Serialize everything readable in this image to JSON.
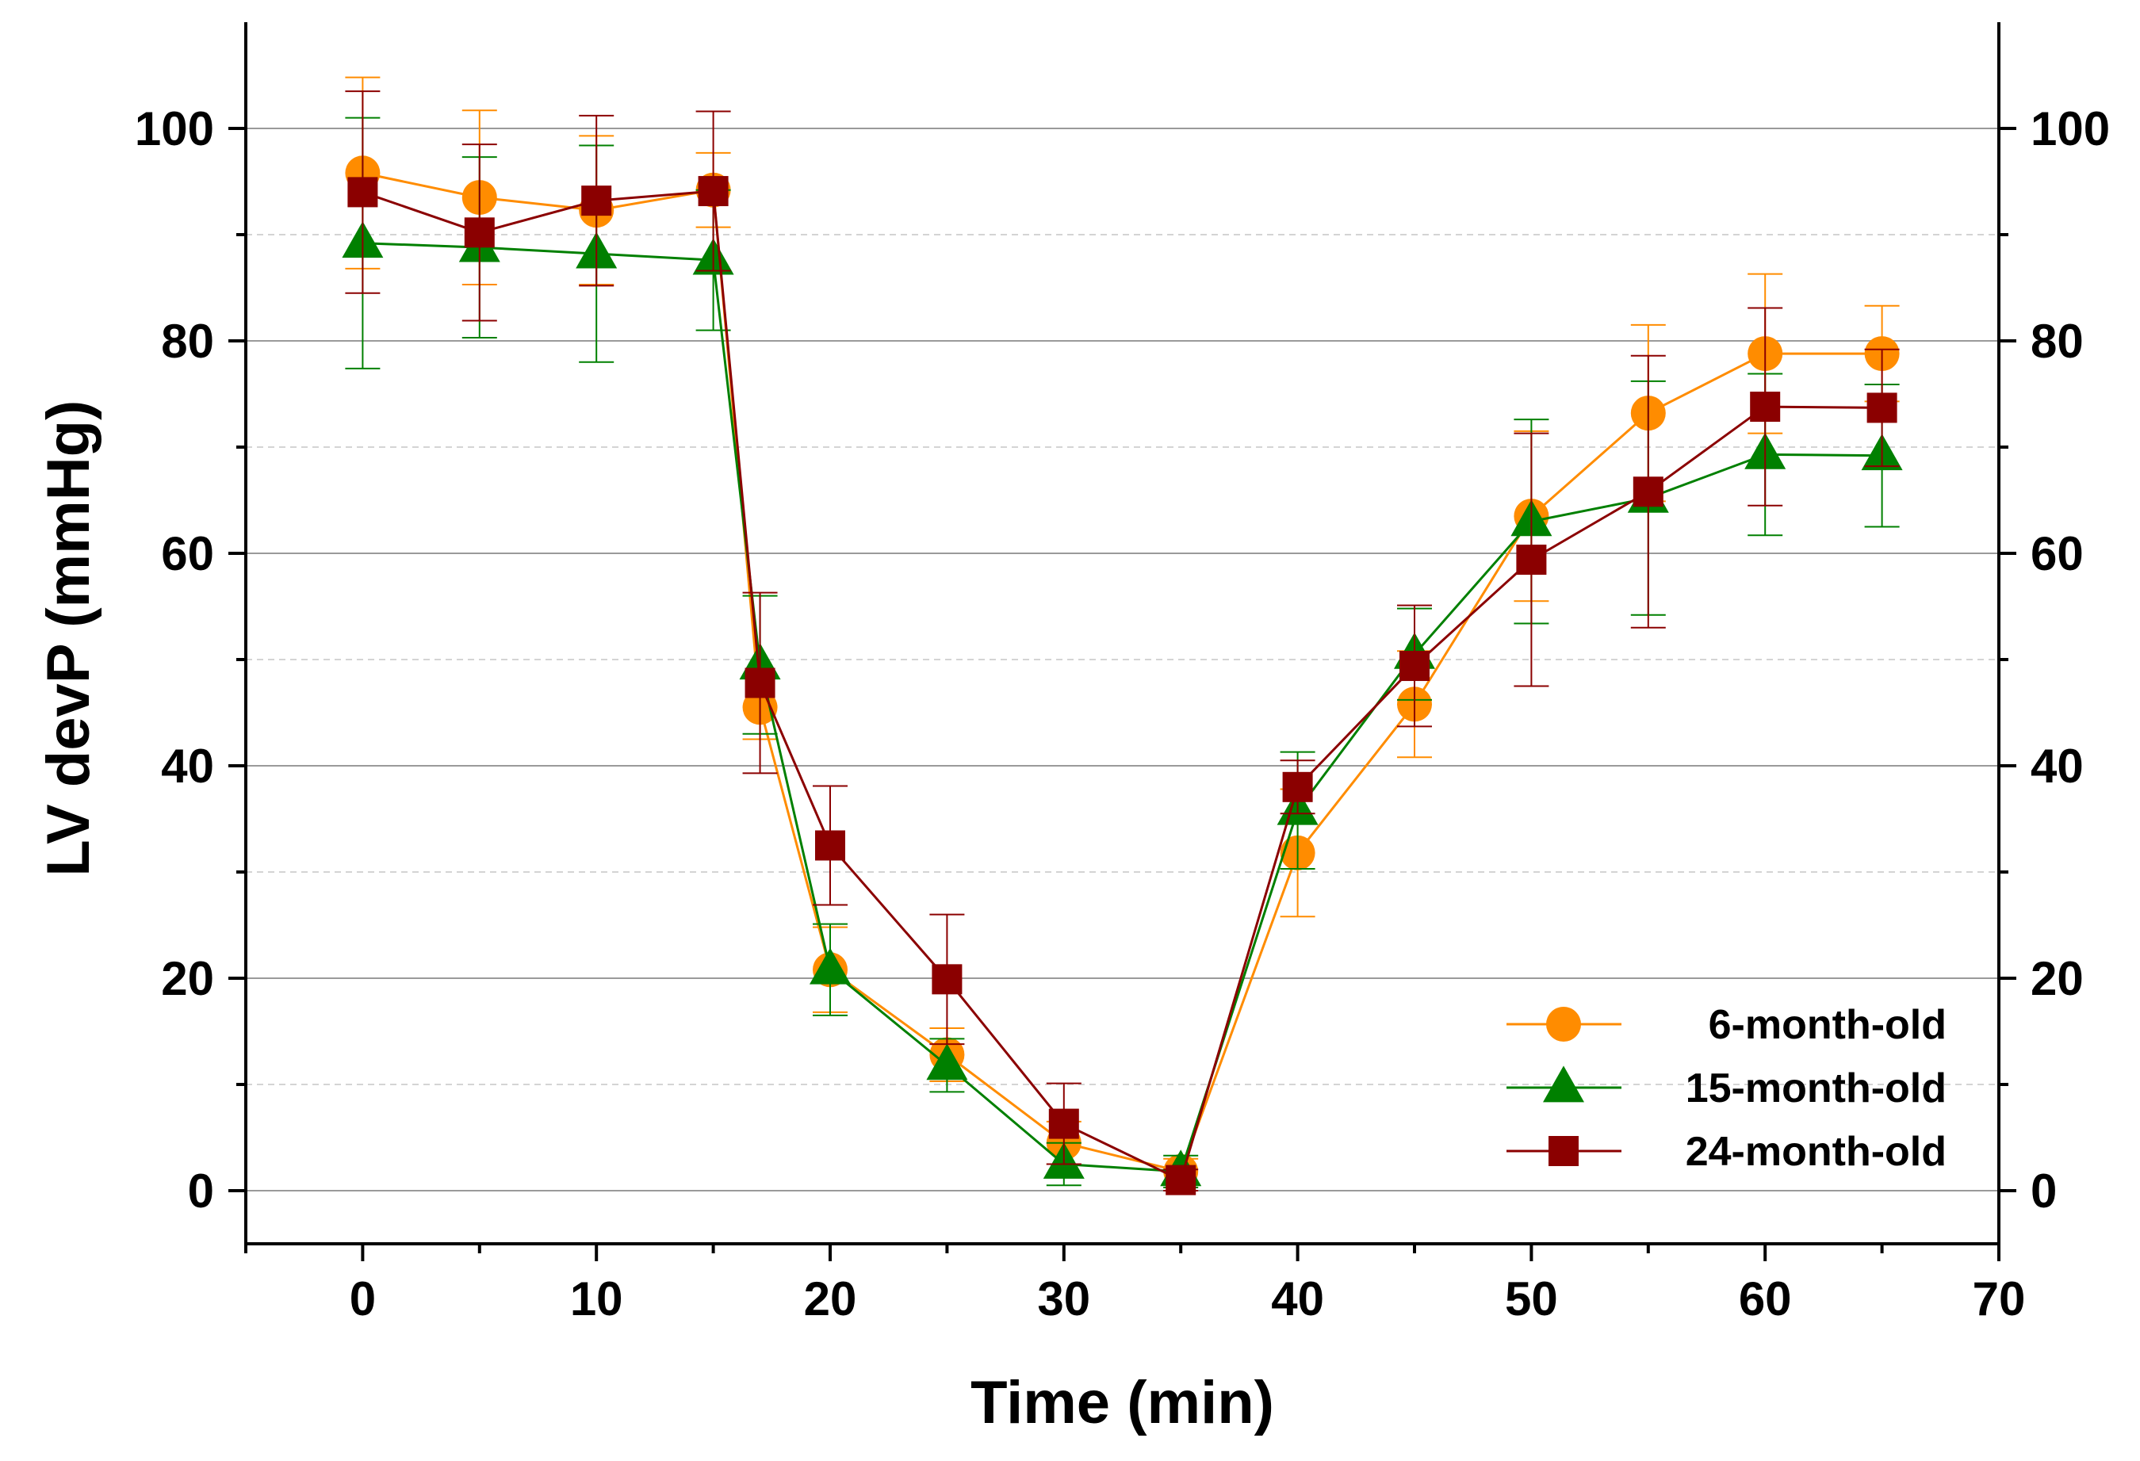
{
  "chart_data": {
    "type": "line",
    "title": "",
    "xlabel": "Time (min)",
    "ylabel": "LV devP (mmHg)",
    "xlim": [
      -5,
      70
    ],
    "ylim": [
      -5,
      110
    ],
    "xticks": [
      0,
      10,
      20,
      30,
      40,
      50,
      60,
      70
    ],
    "yticks": [
      0,
      20,
      40,
      60,
      80,
      100
    ],
    "xtick_labels": [
      "0",
      "10",
      "20",
      "30",
      "40",
      "50",
      "60",
      "70"
    ],
    "ytick_labels": [
      "0",
      "20",
      "40",
      "60",
      "80",
      "100"
    ],
    "right_ytick_labels": [
      "0",
      "20",
      "40",
      "60",
      "80",
      "100"
    ],
    "grid": "horizontal major lines solid, minor lines dashed",
    "legend_position": "bottom-right",
    "x": [
      0,
      5,
      10,
      15,
      17,
      20,
      25,
      30,
      35,
      40,
      45,
      50,
      55,
      60,
      65
    ],
    "series": [
      {
        "name": "6-month-old",
        "marker": "circle",
        "color": "#ff8c00",
        "values": [
          95.8,
          93.5,
          92.3,
          94.2,
          45.5,
          20.8,
          12.8,
          4.5,
          1.8,
          31.8,
          45.8,
          63.5,
          73.2,
          78.8,
          78.8
        ],
        "errors": [
          9.0,
          8.2,
          7.0,
          3.5,
          3.0,
          4.0,
          2.5,
          2.0,
          1.2,
          6.0,
          5.0,
          8.0,
          8.3,
          7.5,
          4.5
        ]
      },
      {
        "name": "15-month-old",
        "marker": "triangle",
        "color": "#008000",
        "values": [
          89.2,
          88.8,
          88.2,
          87.6,
          49.5,
          20.8,
          11.8,
          2.5,
          1.8,
          35.8,
          50.5,
          63.0,
          65.2,
          69.3,
          69.2
        ],
        "errors": [
          11.8,
          8.5,
          10.2,
          6.6,
          6.5,
          4.3,
          2.5,
          2.0,
          1.5,
          5.5,
          4.3,
          9.6,
          11.0,
          7.6,
          6.7
        ]
      },
      {
        "name": "24-month-old",
        "marker": "square",
        "color": "#8b0000",
        "values": [
          94.0,
          90.2,
          93.2,
          94.1,
          47.8,
          32.5,
          19.9,
          6.3,
          1.0,
          38.0,
          49.4,
          59.4,
          65.8,
          73.8,
          73.7
        ],
        "errors": [
          9.5,
          8.3,
          8.0,
          7.5,
          8.5,
          5.6,
          6.1,
          3.8,
          1.0,
          2.5,
          5.7,
          11.9,
          12.8,
          9.3,
          5.5
        ]
      }
    ]
  }
}
